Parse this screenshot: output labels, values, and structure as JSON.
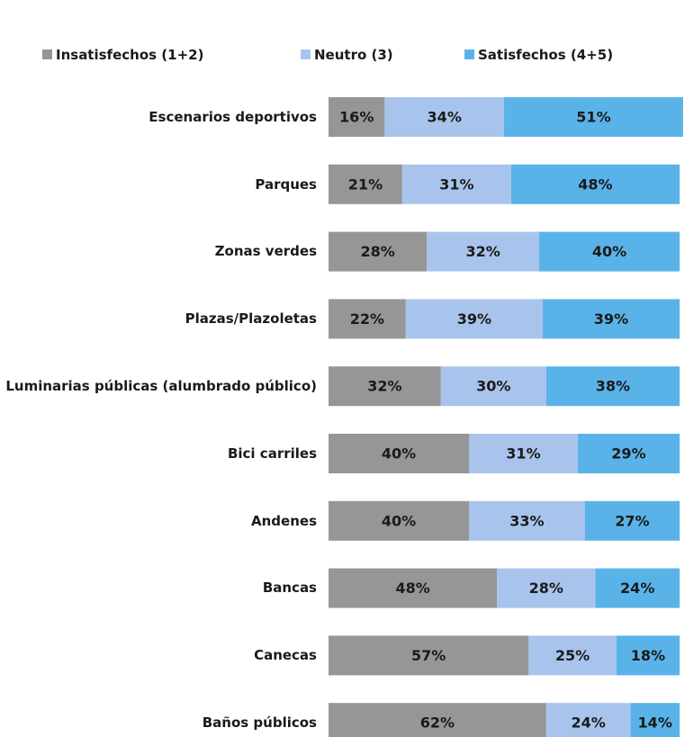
{
  "chart_data": {
    "type": "stacked-barh",
    "categories": [
      "Escenarios deportivos",
      "Parques",
      "Zonas verdes",
      "Plazas/Plazoletas",
      "Luminarias públicas (alumbrado público)",
      "Bici carriles",
      "Andenes",
      "Bancas",
      "Canecas",
      "Baños públicos"
    ],
    "series": [
      {
        "name": "Insatisfechos (1+2)",
        "color": "#969696",
        "values": [
          16,
          21,
          28,
          22,
          32,
          40,
          40,
          48,
          57,
          62
        ],
        "value_labels": [
          "16%",
          "21%",
          "28%",
          "22%",
          "32%",
          "40%",
          "40%",
          "48%",
          "57%",
          "62%"
        ]
      },
      {
        "name": "Neutro (3)",
        "color": "#a9c4ec",
        "values": [
          34,
          31,
          32,
          39,
          30,
          31,
          33,
          28,
          25,
          24
        ],
        "value_labels": [
          "34%",
          "31%",
          "32%",
          "39%",
          "30%",
          "31%",
          "33%",
          "28%",
          "25%",
          "24%"
        ]
      },
      {
        "name": "Satisfechos (4+5)",
        "color": "#5ab3e8",
        "values": [
          51,
          48,
          40,
          39,
          38,
          29,
          27,
          24,
          18,
          14
        ],
        "value_labels": [
          "51%",
          "48%",
          "40%",
          "39%",
          "38%",
          "29%",
          "27%",
          "24%",
          "18%",
          "14%"
        ]
      }
    ],
    "xlim": [
      0,
      100
    ]
  }
}
